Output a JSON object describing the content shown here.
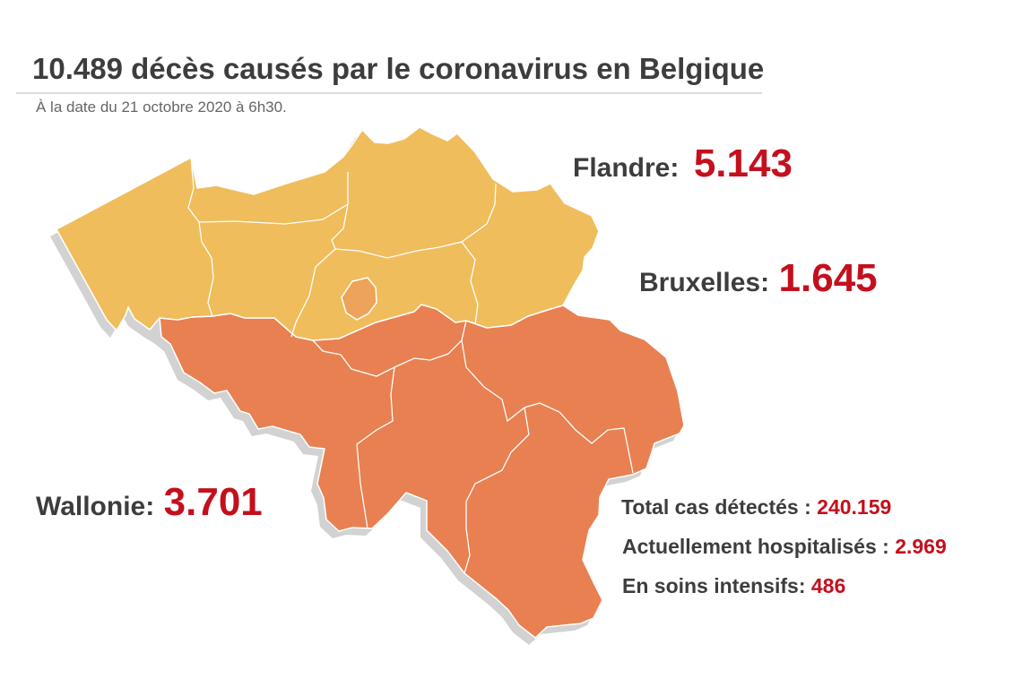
{
  "title": "10.489 décès causés par le coronavirus en Belgique",
  "subtitle": "À la date du 21 octobre 2020 à 6h30.",
  "regions": {
    "flandre": {
      "label": "Flandre:",
      "value": "5.143",
      "color": "#f0bd5c"
    },
    "bruxelles": {
      "label": "Bruxelles:",
      "value": "1.645",
      "color": "#eda35a"
    },
    "wallonie": {
      "label": "Wallonie:",
      "value": "3.701",
      "color": "#e88052"
    }
  },
  "stats": [
    {
      "label": "Total cas détectés : ",
      "value": "240.159"
    },
    {
      "label": "Actuellement hospitalisés : ",
      "value": "2.969"
    },
    {
      "label": "En soins intensifs: ",
      "value": "486"
    }
  ],
  "colors": {
    "accent": "#c4101d",
    "text": "#3d3d3d",
    "border": "#ffffff",
    "shadow": "#d2d2d2"
  }
}
